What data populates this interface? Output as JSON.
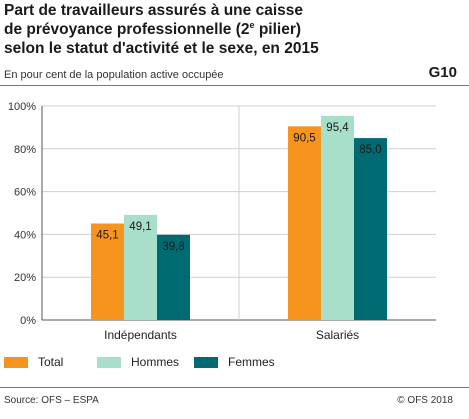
{
  "header": {
    "title_line1": "Part de travailleurs assurés à une caisse",
    "title_line2_pre": "de prévoyance professionnelle (2",
    "title_line2_sup": "e",
    "title_line2_post": " pilier)",
    "title_line3": "selon le statut d'activité et le sexe, en 2015",
    "subtitle": "En pour cent de la population active occupée",
    "code": "G10"
  },
  "footer": {
    "source": "Source: OFS – ESPA",
    "copyright": "© OFS 2018"
  },
  "colors": {
    "total": "#F7941D",
    "hommes": "#A8DFCB",
    "femmes": "#006A73"
  },
  "chart_data": {
    "type": "bar",
    "categories": [
      "Indépendants",
      "Salariés"
    ],
    "series": [
      {
        "name": "Total",
        "values": [
          45.1,
          90.5
        ],
        "labels": [
          "45,1",
          "90,5"
        ]
      },
      {
        "name": "Hommes",
        "values": [
          49.1,
          95.4
        ],
        "labels": [
          "49,1",
          "95,4"
        ]
      },
      {
        "name": "Femmes",
        "values": [
          39.8,
          85.0
        ],
        "labels": [
          "39,8",
          "85,0"
        ]
      }
    ],
    "ylim": [
      0,
      100
    ],
    "yticks": [
      "0%",
      "20%",
      "40%",
      "60%",
      "80%",
      "100%"
    ],
    "legend_position": "bottom"
  }
}
